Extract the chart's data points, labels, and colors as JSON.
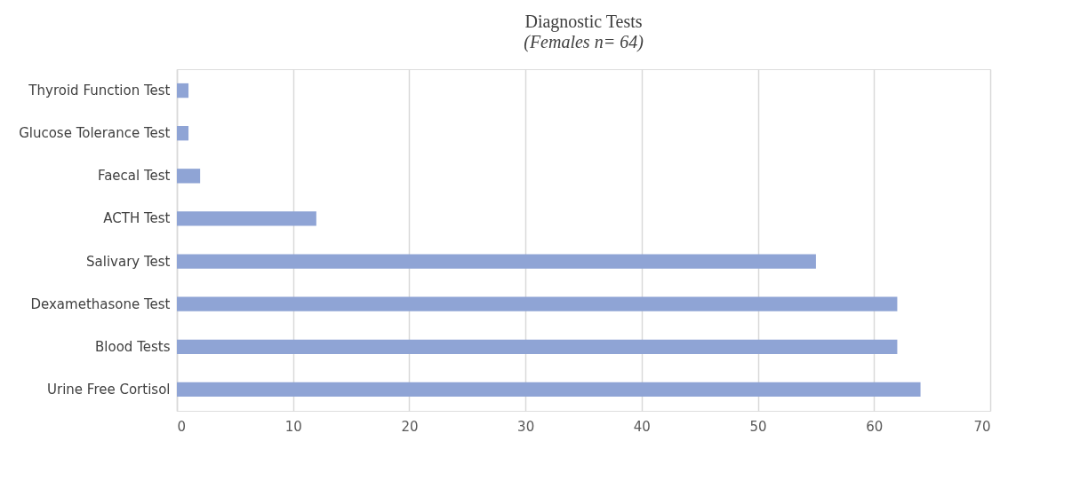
{
  "chart_data": {
    "type": "bar",
    "orientation": "horizontal",
    "title": "Diagnostic Tests",
    "subtitle": "(Females n= 64)",
    "categories": [
      "Thyroid Function Test",
      "Glucose Tolerance Test",
      "Faecal Test",
      "ACTH Test",
      "Salivary Test",
      "Dexamethasone Test",
      "Blood Tests",
      "Urine Free Cortisol"
    ],
    "values": [
      1,
      1,
      2,
      12,
      55,
      62,
      62,
      64
    ],
    "color": "#8fa4d5",
    "xlim": [
      0,
      70
    ],
    "xticks": [
      0,
      10,
      20,
      30,
      40,
      50,
      60,
      70
    ],
    "grid": "x"
  }
}
